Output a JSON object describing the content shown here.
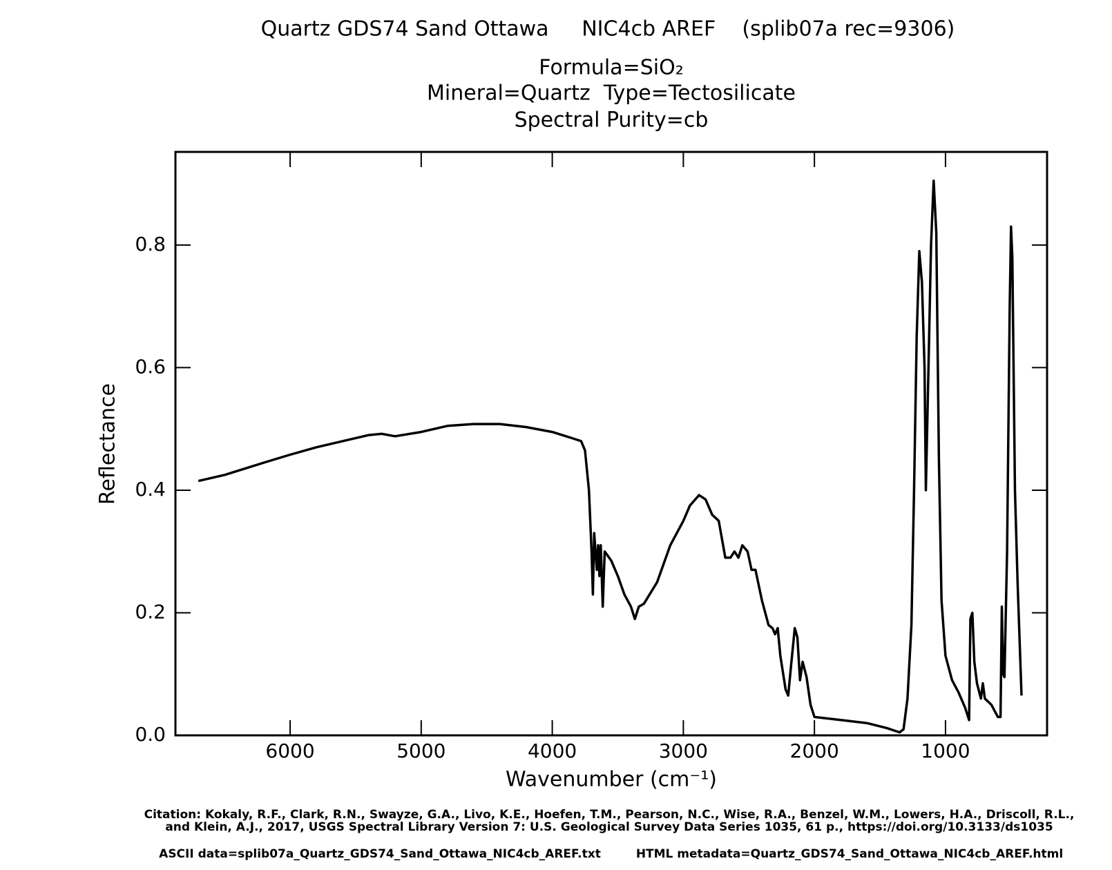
{
  "chart_data": {
    "type": "line",
    "title": "Quartz GDS74 Sand Ottawa     NIC4cb AREF    (splib07a rec=9306)",
    "subtitles": [
      "Formula=SiO₂",
      "Mineral=Quartz  Type=Tectosilicate",
      "Spectral Purity=cb"
    ],
    "x_label": "Wavenumber (cm⁻¹)",
    "y_label": "Reflectance",
    "xlim": [
      6875,
      225
    ],
    "ylim": [
      0,
      0.952
    ],
    "xticks": [
      6000,
      5000,
      4000,
      3000,
      2000,
      1000
    ],
    "yticks": [
      {
        "value": 0,
        "label": "0.0"
      },
      0.2,
      0.4,
      0.6,
      0.8
    ],
    "color": "#000000",
    "footer": [
      "Citation: Kokaly, R.F., Clark, R.N., Swayze, G.A., Livo, K.E., Hoefen, T.M., Pearson, N.C., Wise, R.A., Benzel, W.M., Lowers, H.A., Driscoll, R.L.,",
      "and Klein, A.J., 2017, USGS Spectral Library Version 7: U.S. Geological Survey Data Series 1035, 61 p., https://doi.org/10.3133/ds1035",
      "ASCII data=splib07a_Quartz_GDS74_Sand_Ottawa_NIC4cb_AREF.txt",
      "HTML metadata=Quartz_GDS74_Sand_Ottawa_NIC4cb_AREF.html"
    ],
    "x": [
      6700,
      6500,
      6200,
      6000,
      5800,
      5600,
      5400,
      5300,
      5200,
      5000,
      4800,
      4600,
      4400,
      4200,
      4000,
      3850,
      3780,
      3750,
      3720,
      3700,
      3690,
      3680,
      3660,
      3650,
      3640,
      3630,
      3615,
      3600,
      3550,
      3500,
      3450,
      3400,
      3370,
      3340,
      3300,
      3200,
      3100,
      3000,
      2950,
      2880,
      2830,
      2780,
      2730,
      2680,
      2640,
      2610,
      2580,
      2550,
      2510,
      2480,
      2450,
      2400,
      2350,
      2320,
      2300,
      2280,
      2260,
      2220,
      2200,
      2180,
      2150,
      2130,
      2110,
      2090,
      2060,
      2030,
      2000,
      1800,
      1600,
      1450,
      1350,
      1320,
      1290,
      1260,
      1240,
      1220,
      1200,
      1180,
      1160,
      1150,
      1130,
      1110,
      1090,
      1070,
      1050,
      1030,
      1000,
      950,
      900,
      850,
      820,
      810,
      795,
      780,
      760,
      730,
      715,
      700,
      650,
      600,
      580,
      570,
      560,
      550,
      530,
      510,
      500,
      490,
      470,
      450,
      420
    ],
    "values": [
      0.415,
      0.425,
      0.445,
      0.458,
      0.47,
      0.48,
      0.49,
      0.492,
      0.488,
      0.495,
      0.505,
      0.508,
      0.508,
      0.503,
      0.495,
      0.485,
      0.48,
      0.465,
      0.4,
      0.3,
      0.23,
      0.33,
      0.27,
      0.31,
      0.26,
      0.31,
      0.21,
      0.3,
      0.285,
      0.26,
      0.23,
      0.21,
      0.19,
      0.21,
      0.215,
      0.25,
      0.31,
      0.35,
      0.375,
      0.392,
      0.385,
      0.36,
      0.35,
      0.29,
      0.29,
      0.3,
      0.29,
      0.31,
      0.3,
      0.27,
      0.27,
      0.22,
      0.18,
      0.175,
      0.165,
      0.175,
      0.13,
      0.075,
      0.065,
      0.11,
      0.175,
      0.16,
      0.09,
      0.12,
      0.095,
      0.05,
      0.03,
      0.025,
      0.02,
      0.012,
      0.005,
      0.01,
      0.06,
      0.18,
      0.4,
      0.65,
      0.79,
      0.74,
      0.6,
      0.4,
      0.6,
      0.8,
      0.905,
      0.82,
      0.45,
      0.22,
      0.13,
      0.09,
      0.07,
      0.045,
      0.025,
      0.19,
      0.2,
      0.12,
      0.085,
      0.06,
      0.085,
      0.06,
      0.05,
      0.03,
      0.03,
      0.21,
      0.1,
      0.095,
      0.3,
      0.7,
      0.83,
      0.78,
      0.4,
      0.25,
      0.065
    ]
  }
}
